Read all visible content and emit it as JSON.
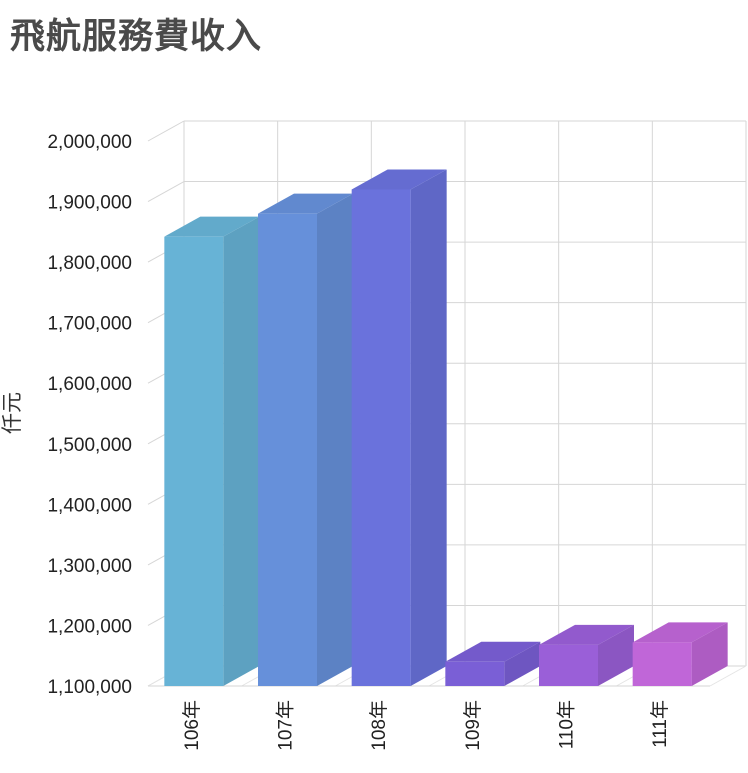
{
  "chart_data": {
    "type": "bar",
    "title": "飛航服務費收入",
    "ylabel": "仟元",
    "xlabel": "",
    "categories": [
      "106年",
      "107年",
      "108年",
      "109年",
      "110年",
      "111年"
    ],
    "values": [
      1842000,
      1880000,
      1920000,
      1140000,
      1168000,
      1172000
    ],
    "ylim": [
      1100000,
      2000000
    ],
    "yticks": [
      1100000,
      1200000,
      1300000,
      1400000,
      1500000,
      1600000,
      1700000,
      1800000,
      1900000,
      2000000
    ],
    "ytick_labels": [
      "1,100,000",
      "1,200,000",
      "1,300,000",
      "1,400,000",
      "1,500,000",
      "1,600,000",
      "1,700,000",
      "1,800,000",
      "1,900,000",
      "2,000,000"
    ],
    "grid": true,
    "style": "3d",
    "colors": [
      "#67b3d6",
      "#6690da",
      "#6a72dc",
      "#7a5fd6",
      "#9a5fd8",
      "#c066d8"
    ]
  }
}
